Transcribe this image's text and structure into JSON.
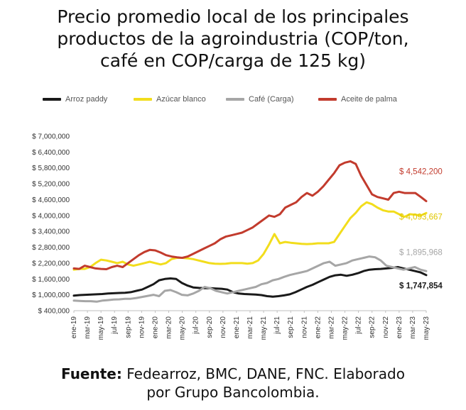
{
  "title_lines": [
    "Precio promedio local de los principales",
    "productos de la agroindustria (COP/ton,",
    "café en COP/carga de 125 kg)"
  ],
  "source": {
    "label": "Fuente:",
    "text_line1": " Fedearroz, BMC, DANE, FNC. Elaborado",
    "text_line2": "por Grupo Bancolombia."
  },
  "chart_data": {
    "type": "line",
    "title": "Precio promedio local de los principales productos de la agroindustria (COP/ton, café en COP/carga de 125 kg)",
    "x_tick_labels": [
      "ene-19",
      "mar-19",
      "may-19",
      "jul-19",
      "sep-19",
      "nov-19",
      "ene-20",
      "mar-20",
      "may-20",
      "jul-20",
      "sep-20",
      "nov-20",
      "ene-21",
      "mar-21",
      "may-21",
      "jul-21",
      "sep-21",
      "nov-21",
      "ene-22",
      "mar-22",
      "may-22",
      "jul-22",
      "sep-22",
      "nov-22",
      "ene-23",
      "mar-23",
      "may-23"
    ],
    "y_tick_labels": [
      "$ 400,000",
      "$ 1,000,000",
      "$ 1,600,000",
      "$ 2,200,000",
      "$ 2,800,000",
      "$ 3,400,000",
      "$ 4,000,000",
      "$ 4,600,000",
      "$ 5,200,000",
      "$ 5,800,000",
      "$ 6,400,000",
      "$ 7,000,000"
    ],
    "ylim": [
      400000,
      7000000
    ],
    "legend_position": "top",
    "grid": false,
    "series": [
      {
        "name": "Arroz paddy",
        "color": "#1a1a1a",
        "end_label": "$ 1,747,854",
        "end_label_color": "#1a1a1a",
        "values": [
          970000,
          990000,
          1000000,
          1010000,
          1020000,
          1030000,
          1050000,
          1060000,
          1070000,
          1080000,
          1100000,
          1150000,
          1200000,
          1300000,
          1400000,
          1550000,
          1600000,
          1620000,
          1600000,
          1450000,
          1350000,
          1280000,
          1260000,
          1250000,
          1250000,
          1240000,
          1230000,
          1200000,
          1100000,
          1050000,
          1030000,
          1020000,
          1010000,
          990000,
          950000,
          930000,
          950000,
          980000,
          1020000,
          1100000,
          1200000,
          1300000,
          1380000,
          1480000,
          1580000,
          1680000,
          1740000,
          1760000,
          1720000,
          1760000,
          1820000,
          1900000,
          1950000,
          1970000,
          1980000,
          2000000,
          2020000,
          2050000,
          2000000,
          1950000,
          1900000,
          1850000,
          1747854
        ]
      },
      {
        "name": "Azúcar blanco",
        "color": "#f2dd1c",
        "end_label": "$ 4,093,667",
        "end_label_color": "#e0c700",
        "values": [
          1950000,
          1980000,
          1980000,
          2050000,
          2200000,
          2330000,
          2300000,
          2250000,
          2200000,
          2250000,
          2150000,
          2100000,
          2150000,
          2200000,
          2250000,
          2200000,
          2150000,
          2200000,
          2350000,
          2400000,
          2400000,
          2380000,
          2350000,
          2300000,
          2250000,
          2200000,
          2180000,
          2170000,
          2180000,
          2200000,
          2200000,
          2200000,
          2180000,
          2200000,
          2300000,
          2550000,
          2900000,
          3300000,
          2950000,
          3000000,
          2970000,
          2950000,
          2930000,
          2920000,
          2930000,
          2950000,
          2950000,
          2950000,
          3000000,
          3300000,
          3600000,
          3900000,
          4100000,
          4350000,
          4500000,
          4430000,
          4300000,
          4200000,
          4150000,
          4150000,
          4050000,
          3950000,
          4050000,
          4030000,
          4000000,
          4093667
        ]
      },
      {
        "name": "Café (Carga)",
        "color": "#a6a6a6",
        "end_label": "$ 1,895,968",
        "end_label_color": "#a6a6a6",
        "values": [
          780000,
          770000,
          760000,
          760000,
          740000,
          780000,
          800000,
          820000,
          830000,
          850000,
          850000,
          880000,
          920000,
          960000,
          1000000,
          950000,
          1150000,
          1180000,
          1100000,
          1000000,
          980000,
          1050000,
          1150000,
          1300000,
          1250000,
          1150000,
          1100000,
          1050000,
          1100000,
          1150000,
          1200000,
          1250000,
          1300000,
          1400000,
          1450000,
          1550000,
          1600000,
          1680000,
          1750000,
          1800000,
          1850000,
          1900000,
          2000000,
          2100000,
          2200000,
          2250000,
          2100000,
          2150000,
          2200000,
          2300000,
          2350000,
          2400000,
          2450000,
          2420000,
          2300000,
          2100000,
          2050000,
          2000000,
          1950000,
          2000000,
          2050000,
          1950000,
          1895968
        ]
      },
      {
        "name": "Aceite de palma",
        "color": "#c23b2d",
        "end_label": "$ 4,542,200",
        "end_label_color": "#c23b2d",
        "values": [
          2000000,
          1980000,
          2100000,
          2050000,
          2000000,
          1980000,
          1970000,
          2050000,
          2100000,
          2050000,
          2200000,
          2350000,
          2500000,
          2620000,
          2700000,
          2680000,
          2600000,
          2500000,
          2450000,
          2420000,
          2400000,
          2450000,
          2550000,
          2650000,
          2750000,
          2850000,
          2950000,
          3100000,
          3200000,
          3250000,
          3300000,
          3350000,
          3450000,
          3550000,
          3700000,
          3850000,
          4000000,
          3950000,
          4050000,
          4300000,
          4400000,
          4500000,
          4700000,
          4850000,
          4750000,
          4900000,
          5100000,
          5350000,
          5600000,
          5900000,
          6000000,
          6050000,
          5950000,
          5500000,
          5150000,
          4800000,
          4700000,
          4650000,
          4600000,
          4850000,
          4900000,
          4850000,
          4850000,
          4850000,
          4700000,
          4542200
        ]
      }
    ]
  }
}
